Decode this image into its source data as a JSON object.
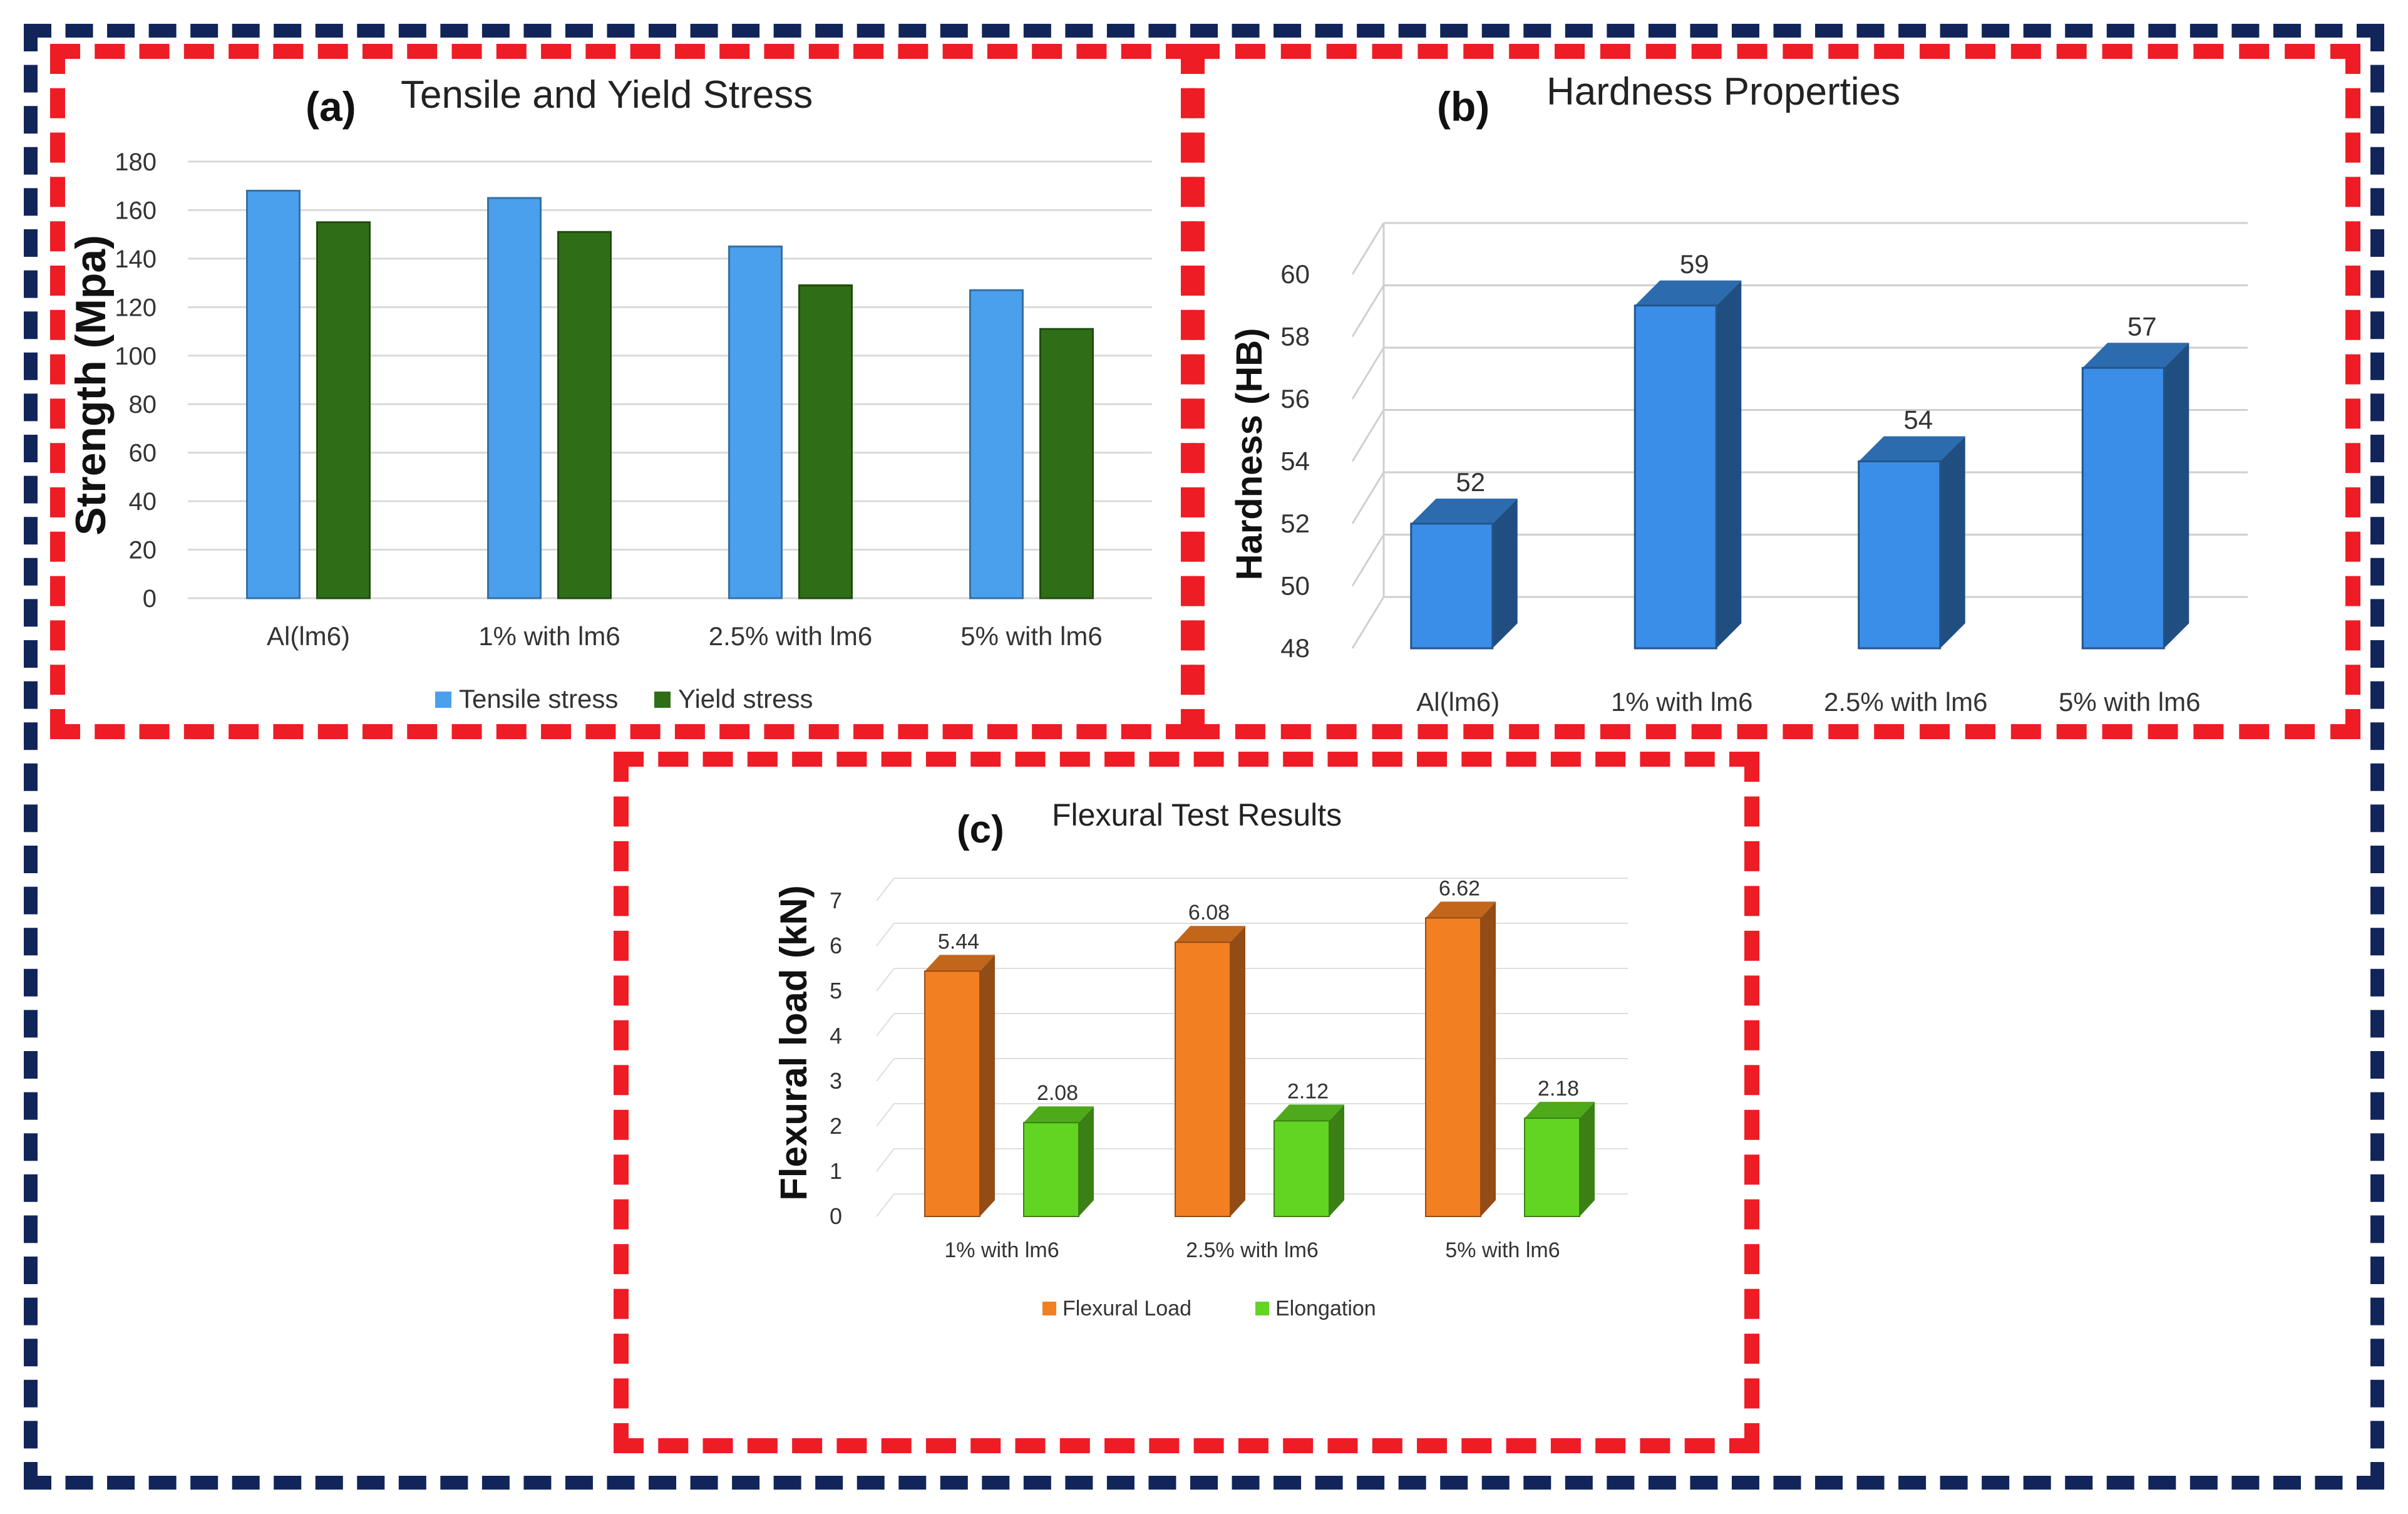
{
  "colors": {
    "outer_frame": "#12255a",
    "panel_frame": "#ee1c25",
    "tensile": "#4aa0ec",
    "yield": "#2f6e16",
    "hardness": "#3b8ee8",
    "flexural": "#f37f23",
    "elongation": "#61d522"
  },
  "chart_data": [
    {
      "type": "bar",
      "panel_label": "(a)",
      "title": "Tensile and Yield Stress",
      "ylabel": "Strength (Mpa)",
      "xlabel": "",
      "ylim": [
        0,
        180
      ],
      "yticks": [
        0,
        20,
        40,
        60,
        80,
        100,
        120,
        140,
        160,
        180
      ],
      "grid": true,
      "categories": [
        "Al(lm6)",
        "1% with lm6",
        "2.5% with lm6",
        "5% with lm6"
      ],
      "series": [
        {
          "name": "Tensile stress",
          "values": [
            168,
            165,
            145,
            127
          ]
        },
        {
          "name": "Yield stress",
          "values": [
            155,
            151,
            129,
            111
          ]
        }
      ],
      "legend": "bottom"
    },
    {
      "type": "bar",
      "panel_label": "(b)",
      "title": "Hardness Properties",
      "ylabel": "Hardness (HB)",
      "xlabel": "",
      "ylim": [
        48,
        60
      ],
      "yticks": [
        48,
        50,
        52,
        54,
        56,
        58,
        60
      ],
      "grid": true,
      "categories": [
        "Al(lm6)",
        "1% with lm6",
        "2.5% with lm6",
        "5% with lm6"
      ],
      "series": [
        {
          "name": "Hardness",
          "values": [
            52,
            59,
            54,
            57
          ]
        }
      ],
      "data_labels": [
        "52",
        "59",
        "54",
        "57"
      ]
    },
    {
      "type": "bar",
      "panel_label": "(c)",
      "title": "Flexural Test Results",
      "ylabel": "Flexural load (kN)",
      "xlabel": "",
      "ylim": [
        0,
        7
      ],
      "yticks": [
        0,
        1,
        2,
        3,
        4,
        5,
        6,
        7
      ],
      "grid": true,
      "categories": [
        "1% with lm6",
        "2.5% with lm6",
        "5% with lm6"
      ],
      "series": [
        {
          "name": "Flexural Load",
          "values": [
            5.44,
            6.08,
            6.62
          ],
          "labels": [
            "5.44",
            "6.08",
            "6.62"
          ]
        },
        {
          "name": "Elongation",
          "values": [
            2.08,
            2.12,
            2.18
          ],
          "labels": [
            "2.08",
            "2.12",
            "2.18"
          ]
        }
      ],
      "legend": "bottom"
    }
  ]
}
